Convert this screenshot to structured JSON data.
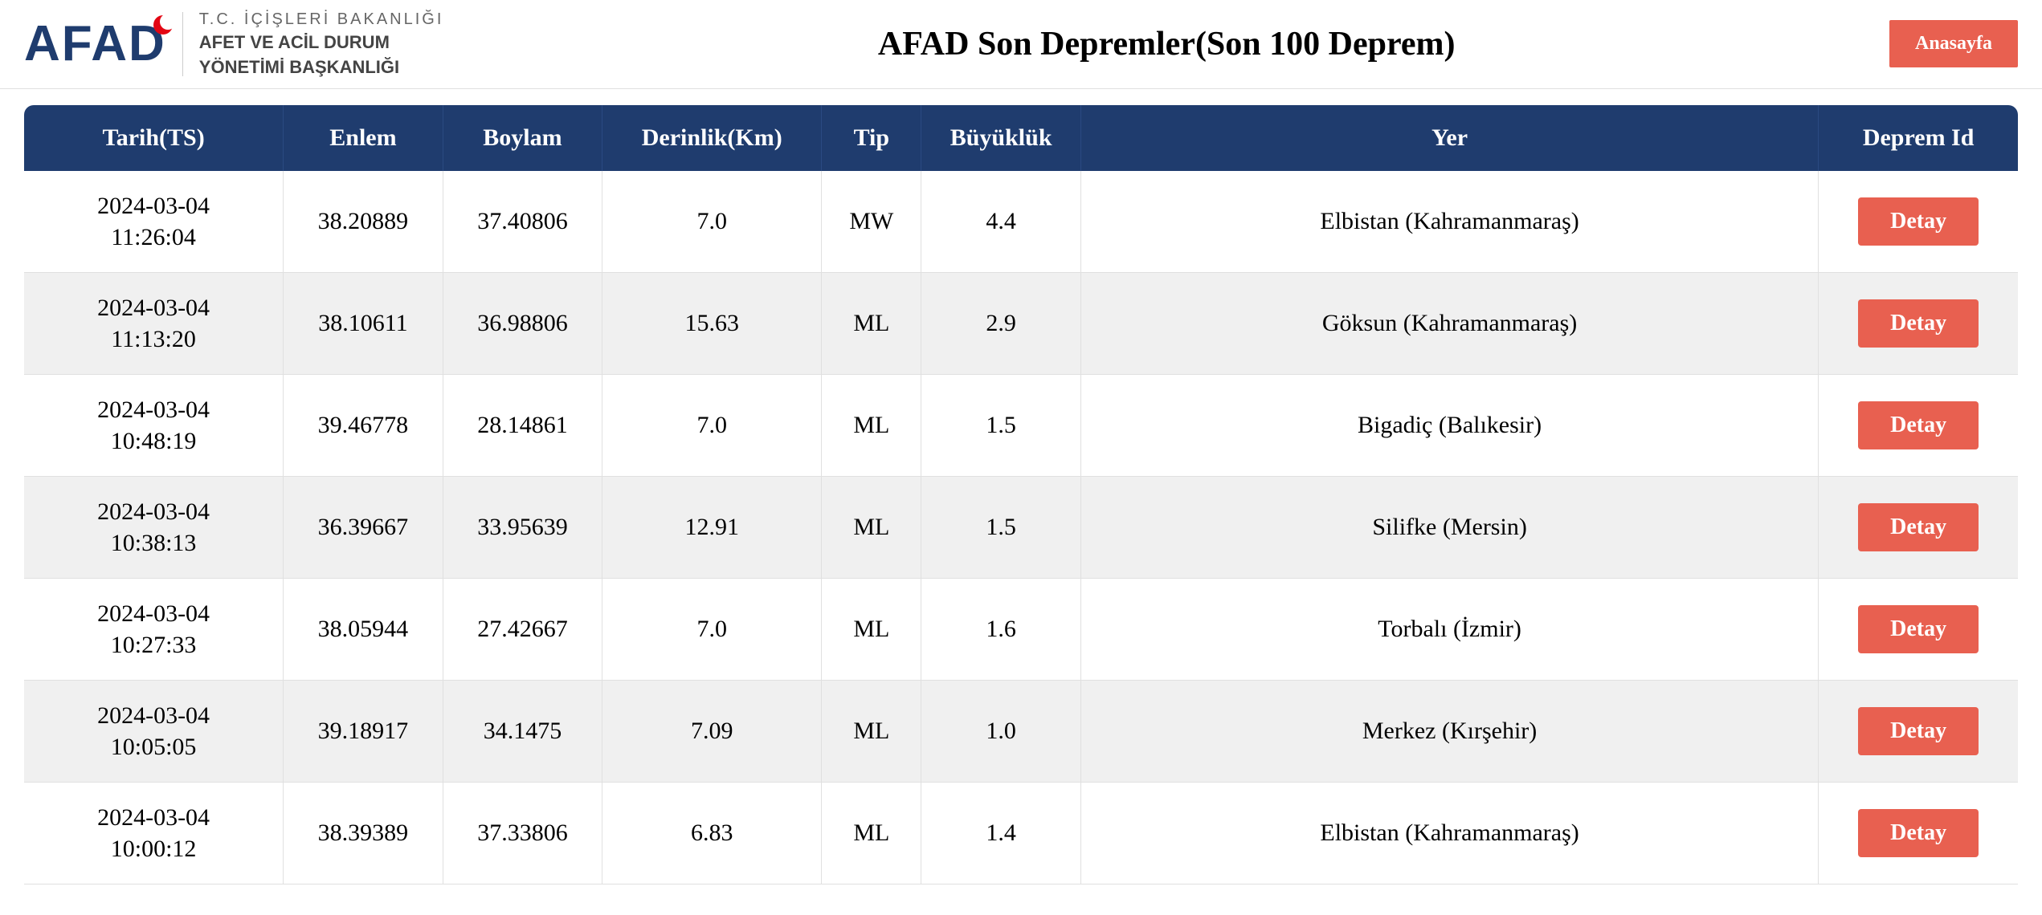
{
  "header": {
    "logo_text": "AFAD",
    "ministry_line1": "T.C. İÇİŞLERİ BAKANLIĞI",
    "ministry_line2": "AFET VE ACİL DURUM",
    "ministry_line3": "YÖNETİMİ BAŞKANLIĞI",
    "page_title": "AFAD Son Depremler(Son 100 Deprem)",
    "home_button": "Anasayfa"
  },
  "table": {
    "columns": [
      "Tarih(TS)",
      "Enlem",
      "Boylam",
      "Derinlik(Km)",
      "Tip",
      "Büyüklük",
      "Yer",
      "Deprem Id"
    ],
    "detail_button_label": "Detay",
    "rows": [
      {
        "tarih": "2024-03-04\n11:26:04",
        "enlem": "38.20889",
        "boylam": "37.40806",
        "derinlik": "7.0",
        "tip": "MW",
        "buyukluk": "4.4",
        "yer": "Elbistan (Kahramanmaraş)"
      },
      {
        "tarih": "2024-03-04\n11:13:20",
        "enlem": "38.10611",
        "boylam": "36.98806",
        "derinlik": "15.63",
        "tip": "ML",
        "buyukluk": "2.9",
        "yer": "Göksun (Kahramanmaraş)"
      },
      {
        "tarih": "2024-03-04\n10:48:19",
        "enlem": "39.46778",
        "boylam": "28.14861",
        "derinlik": "7.0",
        "tip": "ML",
        "buyukluk": "1.5",
        "yer": "Bigadiç (Balıkesir)"
      },
      {
        "tarih": "2024-03-04\n10:38:13",
        "enlem": "36.39667",
        "boylam": "33.95639",
        "derinlik": "12.91",
        "tip": "ML",
        "buyukluk": "1.5",
        "yer": "Silifke (Mersin)"
      },
      {
        "tarih": "2024-03-04\n10:27:33",
        "enlem": "38.05944",
        "boylam": "27.42667",
        "derinlik": "7.0",
        "tip": "ML",
        "buyukluk": "1.6",
        "yer": "Torbalı (İzmir)"
      },
      {
        "tarih": "2024-03-04\n10:05:05",
        "enlem": "39.18917",
        "boylam": "34.1475",
        "derinlik": "7.09",
        "tip": "ML",
        "buyukluk": "1.0",
        "yer": "Merkez (Kırşehir)"
      },
      {
        "tarih": "2024-03-04\n10:00:12",
        "enlem": "38.39389",
        "boylam": "37.33806",
        "derinlik": "6.83",
        "tip": "ML",
        "buyukluk": "1.4",
        "yer": "Elbistan (Kahramanmaraş)"
      }
    ]
  },
  "colors": {
    "header_bg": "#1f3c6e",
    "button_bg": "#e86050",
    "row_even_bg": "#f0f0f0",
    "row_odd_bg": "#ffffff",
    "text": "#000000"
  }
}
